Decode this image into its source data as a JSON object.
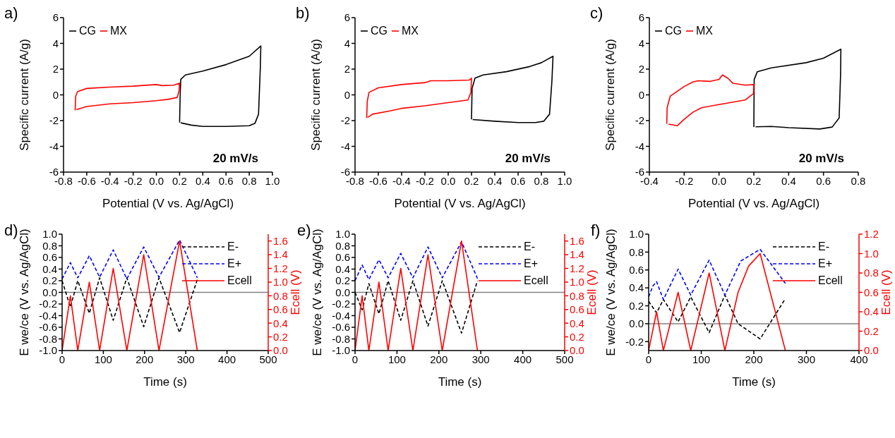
{
  "chart_data": [
    {
      "type": "line",
      "title": "a)",
      "xlabel": "Potential (V vs. Ag/AgCl)",
      "ylabel": "Specific current (A/g)",
      "xlim": [
        -0.8,
        1.0
      ],
      "xticks": [
        {
          "value": -0.8,
          "label": "-0.8"
        },
        {
          "value": -0.6,
          "label": "-0.6"
        },
        {
          "value": -0.4,
          "label": "-0.4"
        },
        {
          "value": -0.2,
          "label": "-0.2"
        },
        {
          "value": 0,
          "label": "0.0"
        },
        {
          "value": 0.2,
          "label": "0.2"
        },
        {
          "value": 0.4,
          "label": "0.4"
        },
        {
          "value": 0.6,
          "label": "0.6"
        },
        {
          "value": 0.8,
          "label": "0.8"
        },
        {
          "value": 1.0,
          "label": "1.0"
        }
      ],
      "ylim": [
        -6,
        6
      ],
      "yticks": [
        -6,
        -4,
        -2,
        0,
        2,
        4,
        6
      ],
      "legend": "top left",
      "annotations": [
        "20 mV/s"
      ],
      "series": [
        {
          "name": "CG",
          "color": "#000000",
          "x": [
            0.2,
            0.205,
            0.21,
            0.25,
            0.4,
            0.6,
            0.8,
            0.9,
            0.895,
            0.88,
            0.85,
            0.8,
            0.6,
            0.4,
            0.3,
            0.21
          ],
          "values": [
            -2.15,
            0,
            1.2,
            1.55,
            1.85,
            2.35,
            3.0,
            3.8,
            2.0,
            -1.5,
            -2.2,
            -2.4,
            -2.45,
            -2.45,
            -2.35,
            -2.17
          ]
        },
        {
          "name": "MX",
          "color": "#ff0000",
          "x": [
            -0.7,
            -0.695,
            -0.68,
            -0.6,
            -0.4,
            -0.2,
            0,
            0.05,
            0.15,
            0.2,
            0.195,
            0.18,
            0.1,
            0,
            -0.2,
            -0.4,
            -0.6,
            -0.69
          ],
          "values": [
            -1.2,
            -0.1,
            0.25,
            0.5,
            0.6,
            0.68,
            0.8,
            0.72,
            0.75,
            0.9,
            0.3,
            -0.2,
            -0.35,
            -0.45,
            -0.6,
            -0.7,
            -0.9,
            -1.15
          ]
        }
      ]
    },
    {
      "type": "line",
      "title": "b)",
      "xlabel": "Potential (V vs. Ag/AgCl)",
      "ylabel": "Specific current (A/g)",
      "xlim": [
        -0.8,
        1.0
      ],
      "xticks": [
        {
          "value": -0.8,
          "label": "-0.8"
        },
        {
          "value": -0.6,
          "label": "-0.6"
        },
        {
          "value": -0.4,
          "label": "-0.4"
        },
        {
          "value": -0.2,
          "label": "-0.2"
        },
        {
          "value": 0,
          "label": "0.0"
        },
        {
          "value": 0.2,
          "label": "0.2"
        },
        {
          "value": 0.4,
          "label": "0.4"
        },
        {
          "value": 0.6,
          "label": "0.6"
        },
        {
          "value": 0.8,
          "label": "0.8"
        },
        {
          "value": 1.0,
          "label": "1.0"
        }
      ],
      "ylim": [
        -6,
        6
      ],
      "yticks": [
        -6,
        -4,
        -2,
        0,
        2,
        4,
        6
      ],
      "legend": "top left",
      "annotations": [
        "20 mV/s"
      ],
      "series": [
        {
          "name": "CG",
          "color": "#000000",
          "x": [
            0.2,
            0.205,
            0.23,
            0.3,
            0.5,
            0.7,
            0.8,
            0.9,
            0.89,
            0.87,
            0.82,
            0.75,
            0.6,
            0.4,
            0.21
          ],
          "values": [
            -1.9,
            0.5,
            1.3,
            1.55,
            1.8,
            2.2,
            2.5,
            3.0,
            1.0,
            -1.5,
            -2.05,
            -2.15,
            -2.15,
            -2.05,
            -1.92
          ]
        },
        {
          "name": "MX",
          "color": "#ff0000",
          "x": [
            -0.7,
            -0.695,
            -0.68,
            -0.6,
            -0.4,
            -0.2,
            -0.15,
            0,
            0.18,
            0.2,
            0.195,
            0.17,
            0,
            -0.2,
            -0.4,
            -0.5,
            -0.65,
            -0.69
          ],
          "values": [
            -1.8,
            -0.5,
            0.2,
            0.55,
            0.8,
            0.95,
            1.1,
            1.1,
            1.15,
            1.3,
            0.2,
            -0.4,
            -0.6,
            -0.85,
            -1.05,
            -1.25,
            -1.5,
            -1.75
          ]
        }
      ]
    },
    {
      "type": "line",
      "title": "c)",
      "xlabel": "Potential (V vs. Ag/AgCl)",
      "ylabel": "Specific current (A/g)",
      "xlim": [
        -0.4,
        0.8
      ],
      "xticks": [
        {
          "value": -0.4,
          "label": "-0.4"
        },
        {
          "value": -0.2,
          "label": "-0.2"
        },
        {
          "value": 0,
          "label": "0.0"
        },
        {
          "value": 0.2,
          "label": "0.2"
        },
        {
          "value": 0.4,
          "label": "0.4"
        },
        {
          "value": 0.6,
          "label": "0.6"
        },
        {
          "value": 0.8,
          "label": "0.8"
        }
      ],
      "ylim": [
        -6,
        6
      ],
      "yticks": [
        -6,
        -4,
        -2,
        0,
        2,
        4,
        6
      ],
      "legend": "top left",
      "annotations": [
        "20 mV/s"
      ],
      "series": [
        {
          "name": "CG",
          "color": "#000000",
          "x": [
            0.2,
            0.202,
            0.22,
            0.3,
            0.5,
            0.6,
            0.7,
            0.698,
            0.69,
            0.65,
            0.58,
            0.4,
            0.3,
            0.21
          ],
          "values": [
            -2.5,
            1.2,
            1.8,
            2.1,
            2.5,
            2.85,
            3.55,
            1.5,
            -1.8,
            -2.5,
            -2.65,
            -2.55,
            -2.45,
            -2.48
          ]
        },
        {
          "name": "MX",
          "color": "#ff0000",
          "x": [
            -0.3,
            -0.298,
            -0.28,
            -0.2,
            -0.15,
            -0.12,
            -0.05,
            0,
            0.02,
            0.05,
            0.08,
            0.15,
            0.2,
            0.198,
            0.15,
            0,
            -0.1,
            -0.15,
            -0.2,
            -0.24,
            -0.29
          ],
          "values": [
            -2.25,
            -1.0,
            -0.1,
            0.65,
            1.0,
            1.1,
            1.05,
            1.2,
            1.55,
            1.3,
            0.9,
            0.75,
            0.8,
            0.1,
            -0.4,
            -0.75,
            -1.0,
            -1.35,
            -1.9,
            -2.4,
            -2.27
          ]
        }
      ]
    },
    {
      "type": "line",
      "title": "d)",
      "xlabel": "Time (s)",
      "ylabel": "E we/ce (V vs. Ag/AgCl)",
      "y2label": "Ecell (V)",
      "xlim": [
        0,
        500
      ],
      "xticks": [
        0,
        100,
        200,
        300,
        400,
        500
      ],
      "ylim": [
        -1,
        1
      ],
      "yticks": [
        {
          "value": -1,
          "label": "-1.0"
        },
        {
          "value": -0.8,
          "label": "-0.8"
        },
        {
          "value": -0.6,
          "label": "-0.6"
        },
        {
          "value": -0.4,
          "label": "-0.4"
        },
        {
          "value": -0.2,
          "label": "-0.2"
        },
        {
          "value": 0,
          "label": "0.0"
        },
        {
          "value": 0.2,
          "label": "0.2"
        },
        {
          "value": 0.4,
          "label": "0.4"
        },
        {
          "value": 0.6,
          "label": "0.6"
        },
        {
          "value": 0.8,
          "label": "0.8"
        },
        {
          "value": 1,
          "label": "1.0"
        }
      ],
      "y2lim": [
        0,
        1.7
      ],
      "y2ticks": [
        {
          "value": 0,
          "label": "0.0"
        },
        {
          "value": 0.2,
          "label": "0.2"
        },
        {
          "value": 0.4,
          "label": "0.4"
        },
        {
          "value": 0.6,
          "label": "0.6"
        },
        {
          "value": 0.8,
          "label": "0.8"
        },
        {
          "value": 1,
          "label": "1.0"
        },
        {
          "value": 1.2,
          "label": "1.2"
        },
        {
          "value": 1.4,
          "label": "1.4"
        },
        {
          "value": 1.6,
          "label": "1.6"
        }
      ],
      "legend": "top right",
      "ref_lines": [
        {
          "axis": "y",
          "value": 0,
          "color": "#808080"
        }
      ],
      "series": [
        {
          "name": "E-",
          "color": "#000000",
          "line_style": "dashed",
          "x": [
            0,
            20,
            38,
            66,
            91,
            124,
            157,
            198,
            235,
            285,
            328
          ],
          "values": [
            0.2,
            -0.25,
            0.2,
            -0.36,
            0.25,
            -0.48,
            0.25,
            -0.59,
            0.25,
            -0.69,
            0.22
          ]
        },
        {
          "name": "E+",
          "color": "#0000ff",
          "line_style": "dashed",
          "x": [
            0,
            20,
            38,
            66,
            91,
            124,
            157,
            198,
            235,
            285,
            328
          ],
          "values": [
            0.23,
            0.51,
            0.25,
            0.63,
            0.26,
            0.73,
            0.23,
            0.78,
            0.26,
            0.9,
            0.25
          ]
        },
        {
          "name": "Ecell",
          "color": "#ff0000",
          "line_style": "solid",
          "axis": "y2",
          "x": [
            0,
            20,
            38,
            66,
            91,
            124,
            157,
            198,
            235,
            285,
            328
          ],
          "values": [
            0,
            0.8,
            0,
            1.0,
            0,
            1.2,
            0,
            1.4,
            0,
            1.6,
            0
          ]
        }
      ]
    },
    {
      "type": "line",
      "title": "e)",
      "xlabel": "Time (s)",
      "ylabel": "E we/ce (V vs. Ag/AgCl)",
      "y2label": "Ecell (V)",
      "xlim": [
        0,
        500
      ],
      "xticks": [
        0,
        100,
        200,
        300,
        400,
        500
      ],
      "ylim": [
        -1,
        1
      ],
      "yticks": [
        {
          "value": -1,
          "label": "-1.0"
        },
        {
          "value": -0.8,
          "label": "-0.8"
        },
        {
          "value": -0.6,
          "label": "-0.6"
        },
        {
          "value": -0.4,
          "label": "-0.4"
        },
        {
          "value": -0.2,
          "label": "-0.2"
        },
        {
          "value": 0,
          "label": "0.0"
        },
        {
          "value": 0.2,
          "label": "0.2"
        },
        {
          "value": 0.4,
          "label": "0.4"
        },
        {
          "value": 0.6,
          "label": "0.6"
        },
        {
          "value": 0.8,
          "label": "0.8"
        },
        {
          "value": 1,
          "label": "1.0"
        }
      ],
      "y2lim": [
        0,
        1.7
      ],
      "y2ticks": [
        {
          "value": 0,
          "label": "0.0"
        },
        {
          "value": 0.2,
          "label": "0.2"
        },
        {
          "value": 0.4,
          "label": "0.4"
        },
        {
          "value": 0.6,
          "label": "0.6"
        },
        {
          "value": 0.8,
          "label": "0.8"
        },
        {
          "value": 1,
          "label": "1.0"
        },
        {
          "value": 1.2,
          "label": "1.2"
        },
        {
          "value": 1.4,
          "label": "1.4"
        },
        {
          "value": 1.6,
          "label": "1.6"
        }
      ],
      "legend": "top right",
      "ref_lines": [
        {
          "axis": "y",
          "value": 0,
          "color": "#808080"
        }
      ],
      "series": [
        {
          "name": "E-",
          "color": "#000000",
          "line_style": "dashed",
          "x": [
            0,
            17,
            33,
            57,
            79,
            109,
            138,
            174,
            208,
            254,
            292
          ],
          "values": [
            0,
            -0.3,
            0.15,
            -0.37,
            0.2,
            -0.48,
            0.2,
            -0.58,
            0.2,
            -0.7,
            0.2
          ]
        },
        {
          "name": "E+",
          "color": "#0000ff",
          "line_style": "dashed",
          "x": [
            0,
            17,
            33,
            57,
            79,
            109,
            138,
            174,
            208,
            254,
            292
          ],
          "values": [
            0.2,
            0.47,
            0.22,
            0.56,
            0.25,
            0.67,
            0.25,
            0.78,
            0.25,
            0.87,
            0.24
          ]
        },
        {
          "name": "Ecell",
          "color": "#ff0000",
          "line_style": "solid",
          "axis": "y2",
          "x": [
            0,
            17,
            33,
            57,
            79,
            109,
            138,
            174,
            208,
            254,
            292
          ],
          "values": [
            0,
            0.8,
            0,
            1.0,
            0,
            1.2,
            0,
            1.4,
            0,
            1.6,
            0
          ]
        }
      ]
    },
    {
      "type": "line",
      "title": "f)",
      "xlabel": "Time (s)",
      "ylabel": "E we/ce (V vs. Ag/AgCl)",
      "y2label": "Ecell (V)",
      "xlim": [
        0,
        400
      ],
      "xticks": [
        0,
        100,
        200,
        300,
        400
      ],
      "ylim": [
        -0.3,
        1
      ],
      "yticks": [
        {
          "value": -0.2,
          "label": "-0.2"
        },
        {
          "value": 0,
          "label": "0.0"
        },
        {
          "value": 0.2,
          "label": "0.2"
        },
        {
          "value": 0.4,
          "label": "0.4"
        },
        {
          "value": 0.6,
          "label": "0.6"
        },
        {
          "value": 0.8,
          "label": "0.8"
        },
        {
          "value": 1,
          "label": "1.0"
        }
      ],
      "y2lim": [
        0,
        1.2
      ],
      "y2ticks": [
        {
          "value": 0,
          "label": "0.0"
        },
        {
          "value": 0.2,
          "label": "0.2"
        },
        {
          "value": 0.4,
          "label": "0.4"
        },
        {
          "value": 0.6,
          "label": "0.6"
        },
        {
          "value": 0.8,
          "label": "0.8"
        },
        {
          "value": 1,
          "label": "1.0"
        },
        {
          "value": 1.2,
          "label": "1.2"
        }
      ],
      "legend": "top right",
      "ref_lines": [
        {
          "axis": "y",
          "value": 0,
          "color": "#808080"
        }
      ],
      "series": [
        {
          "name": "E-",
          "color": "#000000",
          "line_style": "dashed",
          "x": [
            0,
            15,
            28,
            56,
            80,
            115,
            145,
            170,
            212,
            260
          ],
          "values": [
            0.25,
            0.12,
            0.27,
            0.02,
            0.3,
            -0.1,
            0.32,
            0,
            -0.17,
            0.28
          ]
        },
        {
          "name": "E+",
          "color": "#0000ff",
          "line_style": "dashed",
          "x": [
            0,
            8,
            15,
            28,
            56,
            80,
            115,
            145,
            175,
            212,
            260
          ],
          "values": [
            0.3,
            0.42,
            0.47,
            0.27,
            0.61,
            0.32,
            0.71,
            0.32,
            0.7,
            0.83,
            0.45
          ]
        },
        {
          "name": "Ecell",
          "color": "#ff0000",
          "line_style": "solid",
          "axis": "y2",
          "x": [
            0,
            15,
            28,
            56,
            80,
            115,
            145,
            170,
            190,
            212,
            260
          ],
          "values": [
            0,
            0.4,
            0,
            0.6,
            0,
            0.8,
            0,
            0.6,
            0.87,
            1.0,
            0
          ]
        }
      ]
    }
  ]
}
